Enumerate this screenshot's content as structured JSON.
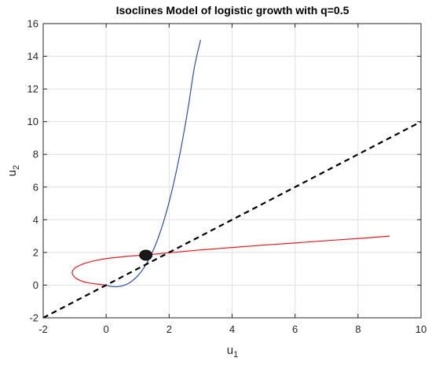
{
  "chart_data": {
    "type": "line",
    "title": "Isoclines Model of logistic growth with q=0.5",
    "xlabel": {
      "base": "u",
      "sub": "1"
    },
    "ylabel": {
      "base": "u",
      "sub": "2"
    },
    "xlim": [
      -2,
      10
    ],
    "ylim": [
      -2,
      16
    ],
    "xticks": [
      -2,
      0,
      2,
      4,
      6,
      8,
      10
    ],
    "yticks": [
      -2,
      0,
      2,
      4,
      6,
      8,
      10,
      12,
      14,
      16
    ],
    "grid": true,
    "legend": "none",
    "colors": {
      "blue": "#2e4fa6",
      "red": "#e41a1c",
      "dash": "#000000",
      "dot": "#1a1a1a",
      "grid": "#e0e0e0",
      "axes": "#262626"
    },
    "series": [
      {
        "style": "blue-solid",
        "curve": "parametric",
        "x": [
          0,
          0.1,
          0.2,
          0.3,
          0.4,
          0.5,
          0.6,
          0.7,
          0.8,
          1.0,
          1.2,
          1.4,
          1.6,
          1.8,
          2.0,
          2.2,
          2.4,
          2.6,
          2.8,
          3.0
        ],
        "y": [
          0,
          -0.06,
          -0.09,
          -0.1,
          -0.09,
          -0.05,
          0.01,
          0.1,
          0.22,
          0.56,
          1.06,
          1.74,
          2.62,
          3.73,
          5.09,
          6.71,
          8.61,
          10.8,
          13.3,
          15.0
        ]
      },
      {
        "style": "red-solid",
        "curve": "parametric",
        "x": [
          0,
          -0.6,
          -0.9,
          -1.05,
          -1.07,
          -0.95,
          -0.6,
          0.0,
          0.8,
          1.3,
          2.0,
          3.0,
          4.0,
          5.0,
          6.0,
          7.0,
          8.0,
          9.0
        ],
        "y": [
          0,
          0.15,
          0.35,
          0.6,
          0.85,
          1.1,
          1.38,
          1.62,
          1.78,
          1.85,
          1.98,
          2.15,
          2.3,
          2.45,
          2.58,
          2.72,
          2.85,
          3.0
        ]
      },
      {
        "style": "black-dashed",
        "curve": "line",
        "x": [
          -2,
          10
        ],
        "y": [
          -2,
          10
        ]
      }
    ],
    "points": [
      {
        "x": 1.26,
        "y": 1.83
      }
    ]
  }
}
